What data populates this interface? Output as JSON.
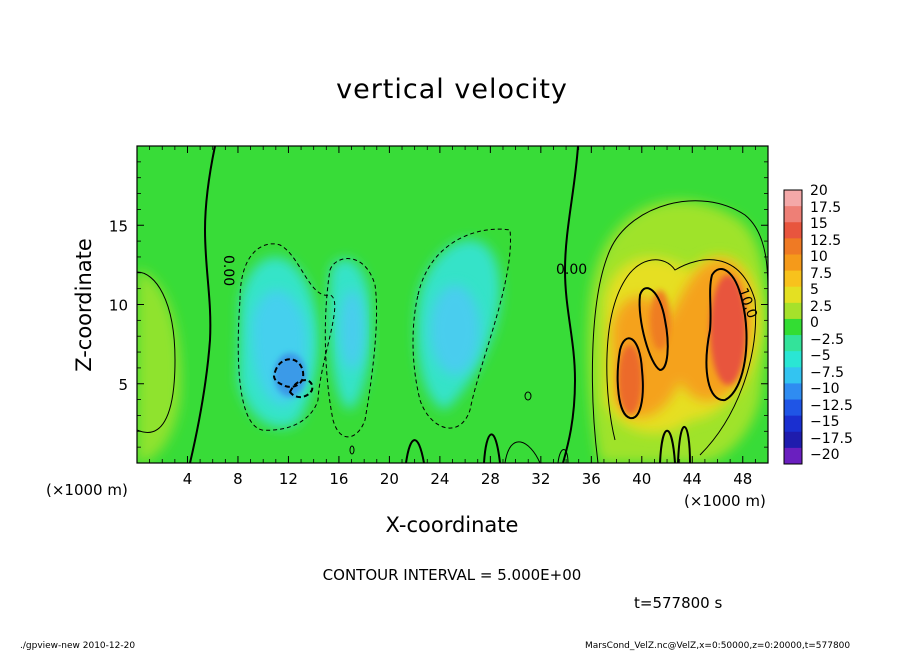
{
  "chart_data": {
    "type": "heatmap",
    "title": "vertical velocity",
    "xlabel": "X-coordinate",
    "ylabel": "Z-coordinate",
    "x_unit_label": "(×1000 m)",
    "x_ticks": [
      4,
      8,
      12,
      16,
      20,
      24,
      28,
      32,
      36,
      40,
      44,
      48
    ],
    "y_ticks": [
      5,
      10,
      15
    ],
    "xlim": [
      0,
      50
    ],
    "ylim": [
      0,
      20
    ],
    "colorbar_labels": [
      "20",
      "17.5",
      "15",
      "12.5",
      "10",
      "7.5",
      "5",
      "2.5",
      "0",
      "−2.5",
      "−5",
      "−7.5",
      "−10",
      "−12.5",
      "−15",
      "−17.5",
      "−20"
    ],
    "colorbar_colors": [
      "#f4a8a8",
      "#ee7f76",
      "#e8553e",
      "#ef7a24",
      "#f59a1a",
      "#f8c21c",
      "#e4e022",
      "#a6e12b",
      "#33dd33",
      "#33e39a",
      "#2ae6d4",
      "#33c4f1",
      "#2f8cf1",
      "#1f55e6",
      "#1a2fd0",
      "#1f1cad",
      "#6a1fbf"
    ],
    "contour_labels": [
      "0.00",
      "0.00",
      "10.0"
    ],
    "contour_interval": "CONTOUR INTERVAL = 5.000E+00",
    "time": "t=577800 s"
  },
  "footer": {
    "left": "./gpview-new   2010-12-20",
    "right": "MarsCond_VelZ.nc@VelZ,x=0:50000,z=0:20000,t=577800"
  }
}
